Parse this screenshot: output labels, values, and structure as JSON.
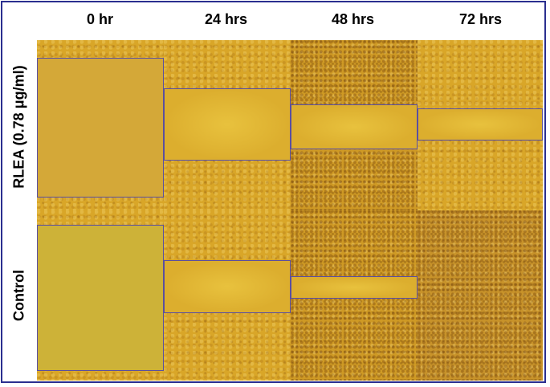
{
  "columns": [
    "0 hr",
    "24 hrs",
    "48 hrs",
    "72 hrs"
  ],
  "rows": [
    "RLEA (0.78 μg/ml)",
    "Control"
  ],
  "colors": {
    "border": "#2b2f8f",
    "wound_box": "#5a4fa0",
    "culture": "#d9a628"
  }
}
